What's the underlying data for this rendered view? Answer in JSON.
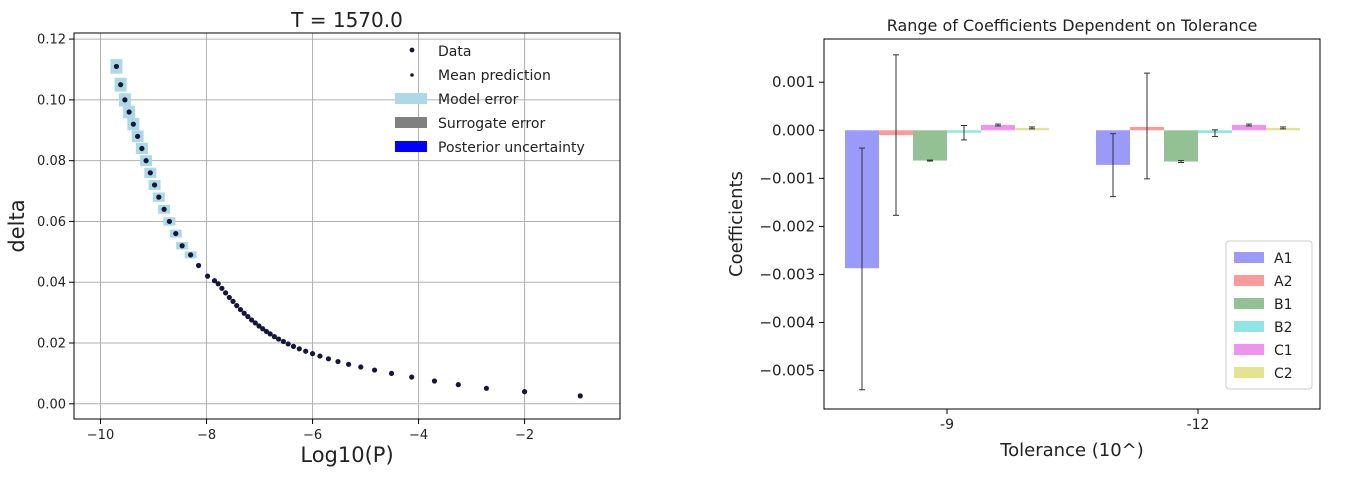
{
  "chart_data": [
    {
      "type": "scatter",
      "title": "T = 1570.0",
      "xlabel": "Log10(P)",
      "ylabel": "delta",
      "xlim": [
        -10.5,
        -0.2
      ],
      "ylim": [
        -0.005,
        0.122
      ],
      "xticks": [
        "−10",
        "−8",
        "−6",
        "−4",
        "−2"
      ],
      "xtick_values": [
        -10,
        -8,
        -6,
        -4,
        -2
      ],
      "yticks": [
        "0.00",
        "0.02",
        "0.04",
        "0.06",
        "0.08",
        "0.10",
        "0.12"
      ],
      "ytick_values": [
        0.0,
        0.02,
        0.04,
        0.06,
        0.08,
        0.1,
        0.12
      ],
      "grid": true,
      "legend": [
        "Data",
        "Mean prediction",
        "Model error",
        "Surrogate error",
        "Posterior uncertainty"
      ],
      "legend_placement": "top-right",
      "colors": {
        "data": "#14163a",
        "model_error": "#add8e6",
        "surrogate_error": "#808080",
        "posterior": "#0000ff"
      },
      "x": [
        -9.7,
        -9.62,
        -9.54,
        -9.46,
        -9.38,
        -9.3,
        -9.22,
        -9.14,
        -9.06,
        -8.98,
        -8.9,
        -8.8,
        -8.7,
        -8.58,
        -8.46,
        -8.3,
        -8.15,
        -7.98,
        -7.85,
        -7.78,
        -7.71,
        -7.64,
        -7.57,
        -7.5,
        -7.43,
        -7.36,
        -7.29,
        -7.22,
        -7.15,
        -7.08,
        -7.01,
        -6.94,
        -6.87,
        -6.8,
        -6.72,
        -6.64,
        -6.55,
        -6.46,
        -6.36,
        -6.25,
        -6.13,
        -6.0,
        -5.86,
        -5.7,
        -5.52,
        -5.32,
        -5.09,
        -4.83,
        -4.51,
        -4.13,
        -3.7,
        -3.25,
        -2.72,
        -2.0,
        -0.95
      ],
      "y": [
        0.111,
        0.105,
        0.1,
        0.096,
        0.092,
        0.088,
        0.084,
        0.08,
        0.076,
        0.072,
        0.068,
        0.064,
        0.06,
        0.056,
        0.052,
        0.049,
        0.0455,
        0.042,
        0.0405,
        0.0395,
        0.038,
        0.0365,
        0.035,
        0.0337,
        0.0323,
        0.031,
        0.0298,
        0.0287,
        0.0276,
        0.0266,
        0.0256,
        0.0247,
        0.0238,
        0.023,
        0.0221,
        0.0213,
        0.0205,
        0.0197,
        0.0189,
        0.0181,
        0.0173,
        0.0165,
        0.0157,
        0.0148,
        0.0139,
        0.013,
        0.0121,
        0.0111,
        0.01,
        0.0088,
        0.0075,
        0.0063,
        0.0051,
        0.004,
        0.0026
      ]
    },
    {
      "type": "bar",
      "title": "Range of Coefficients Dependent on Tolerance",
      "xlabel": "Tolerance (10^)",
      "ylabel": "Coefficients",
      "categories": [
        "-9",
        "-12"
      ],
      "ylim": [
        -0.0058,
        0.0019
      ],
      "yticks": [
        "0.001",
        "0.000",
        "−0.001",
        "−0.002",
        "−0.003",
        "−0.004",
        "−0.005"
      ],
      "ytick_values": [
        0.001,
        0.0,
        -0.001,
        -0.002,
        -0.003,
        -0.004,
        -0.005
      ],
      "grid": false,
      "legend_placement": "bottom-right",
      "series": [
        {
          "name": "A1",
          "color": "#9a9af8",
          "values": [
            -0.00287,
            -0.00072
          ],
          "err_low": [
            -0.0054,
            -0.00138
          ],
          "err_high": [
            -0.00037,
            -7e-05
          ]
        },
        {
          "name": "A2",
          "color": "#f99b9b",
          "values": [
            -0.0001,
            7e-05
          ],
          "err_low": [
            -0.00177,
            -0.00101
          ],
          "err_high": [
            0.00157,
            0.00119
          ]
        },
        {
          "name": "B1",
          "color": "#93c193",
          "values": [
            -0.00063,
            -0.00065
          ],
          "err_low": [
            -0.00064,
            -0.00067
          ],
          "err_high": [
            -0.00062,
            -0.00063
          ]
        },
        {
          "name": "B2",
          "color": "#8ee5e5",
          "values": [
            -5e-05,
            -6e-05
          ],
          "err_low": [
            -0.0002,
            -0.00013
          ],
          "err_high": [
            0.0001,
            1e-05
          ]
        },
        {
          "name": "C1",
          "color": "#f093f0",
          "values": [
            0.00011,
            0.00011
          ],
          "err_low": [
            9e-05,
            9e-05
          ],
          "err_high": [
            0.00013,
            0.00013
          ]
        },
        {
          "name": "C2",
          "color": "#e4e48e",
          "values": [
            5e-05,
            5e-05
          ],
          "err_low": [
            3e-05,
            3e-05
          ],
          "err_high": [
            7e-05,
            7e-05
          ]
        }
      ]
    }
  ]
}
